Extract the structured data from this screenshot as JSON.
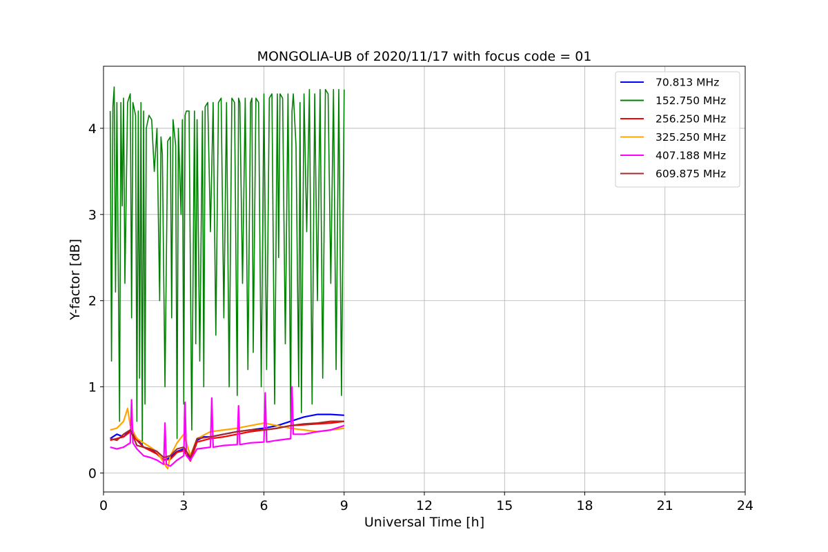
{
  "chart_data": {
    "type": "line",
    "title": "MONGOLIA-UB of 2020/11/17 with focus code = 01",
    "xlabel": "Universal Time [h]",
    "ylabel": "Y-factor [dB]",
    "xlim": [
      0,
      24
    ],
    "ylim": [
      -0.22,
      4.72
    ],
    "xticks": [
      0,
      3,
      6,
      9,
      12,
      15,
      18,
      21,
      24
    ],
    "yticks": [
      0,
      1,
      2,
      3,
      4
    ],
    "grid": true,
    "legend_position": "upper-right",
    "series": [
      {
        "name": " 70.813 MHz",
        "color": "#0000ff",
        "x": [
          0.25,
          0.5,
          0.75,
          1.0,
          1.25,
          1.5,
          1.75,
          2.0,
          2.25,
          2.5,
          2.75,
          3.0,
          3.25,
          3.5,
          3.75,
          4.0,
          4.5,
          5.0,
          5.5,
          6.0,
          6.5,
          7.0,
          7.5,
          8.0,
          8.5,
          9.0
        ],
        "y": [
          0.4,
          0.45,
          0.42,
          0.5,
          0.4,
          0.3,
          0.28,
          0.22,
          0.15,
          0.18,
          0.25,
          0.28,
          0.15,
          0.38,
          0.42,
          0.42,
          0.45,
          0.48,
          0.5,
          0.52,
          0.55,
          0.6,
          0.65,
          0.68,
          0.68,
          0.67
        ]
      },
      {
        "name": "152.750 MHz",
        "color": "#008000",
        "x": [
          0.25,
          0.3,
          0.35,
          0.4,
          0.45,
          0.5,
          0.6,
          0.65,
          0.7,
          0.75,
          0.8,
          0.9,
          1.0,
          1.05,
          1.1,
          1.2,
          1.25,
          1.3,
          1.35,
          1.4,
          1.45,
          1.5,
          1.55,
          1.6,
          1.7,
          1.8,
          1.9,
          2.0,
          2.1,
          2.15,
          2.2,
          2.3,
          2.4,
          2.5,
          2.55,
          2.6,
          2.7,
          2.75,
          2.8,
          2.9,
          2.95,
          3.0,
          3.05,
          3.1,
          3.2,
          3.3,
          3.4,
          3.45,
          3.5,
          3.6,
          3.7,
          3.75,
          3.8,
          3.9,
          4.0,
          4.1,
          4.2,
          4.3,
          4.4,
          4.5,
          4.6,
          4.7,
          4.8,
          4.9,
          5.0,
          5.05,
          5.1,
          5.2,
          5.3,
          5.4,
          5.5,
          5.55,
          5.6,
          5.7,
          5.8,
          5.9,
          6.0,
          6.1,
          6.2,
          6.3,
          6.4,
          6.5,
          6.55,
          6.6,
          6.7,
          6.8,
          6.9,
          7.0,
          7.05,
          7.1,
          7.2,
          7.3,
          7.35,
          7.4,
          7.5,
          7.6,
          7.7,
          7.8,
          7.9,
          8.0,
          8.1,
          8.2,
          8.3,
          8.4,
          8.5,
          8.6,
          8.7,
          8.8,
          8.9,
          9.0
        ],
        "y": [
          4.2,
          1.3,
          4.25,
          4.48,
          2.1,
          4.3,
          0.6,
          4.3,
          3.1,
          4.35,
          2.2,
          4.3,
          4.4,
          1.8,
          4.3,
          4.15,
          0.6,
          4.2,
          1.1,
          4.3,
          0.3,
          4.2,
          0.8,
          4.0,
          4.15,
          4.1,
          3.5,
          4.0,
          2.0,
          3.9,
          3.7,
          1.0,
          3.85,
          3.9,
          1.8,
          4.1,
          3.8,
          0.4,
          4.0,
          3.0,
          4.1,
          0.8,
          4.15,
          4.2,
          4.2,
          0.5,
          4.2,
          1.5,
          4.1,
          1.3,
          4.2,
          1.0,
          4.25,
          4.3,
          2.8,
          4.3,
          1.6,
          4.3,
          4.35,
          1.8,
          4.3,
          1.0,
          4.35,
          4.3,
          0.9,
          4.35,
          4.3,
          2.2,
          4.35,
          1.2,
          4.3,
          4.35,
          1.4,
          4.35,
          4.3,
          1.0,
          4.4,
          1.2,
          4.35,
          4.4,
          0.8,
          4.4,
          2.5,
          4.4,
          4.35,
          1.5,
          4.4,
          0.6,
          4.2,
          4.4,
          3.8,
          1.0,
          4.3,
          0.7,
          4.4,
          2.8,
          4.45,
          0.8,
          4.4,
          2.0,
          4.45,
          1.1,
          4.45,
          4.4,
          2.2,
          4.45,
          1.2,
          4.45,
          0.9,
          4.45
        ]
      },
      {
        "name": "256.250 MHz",
        "color": "#ff0000",
        "x": [
          0.25,
          0.5,
          0.75,
          1.0,
          1.25,
          1.5,
          1.75,
          2.0,
          2.25,
          2.5,
          2.75,
          3.0,
          3.25,
          3.5,
          4.0,
          4.5,
          5.0,
          5.5,
          6.0,
          6.5,
          7.0,
          7.5,
          8.0,
          8.5,
          9.0
        ],
        "y": [
          0.38,
          0.4,
          0.42,
          0.48,
          0.38,
          0.3,
          0.26,
          0.22,
          0.15,
          0.16,
          0.24,
          0.26,
          0.14,
          0.36,
          0.4,
          0.42,
          0.45,
          0.48,
          0.5,
          0.52,
          0.55,
          0.56,
          0.57,
          0.58,
          0.6
        ]
      },
      {
        "name": "325.250 MHz",
        "color": "#ffa500",
        "x": [
          0.25,
          0.5,
          0.75,
          0.9,
          1.0,
          1.25,
          1.5,
          1.75,
          2.0,
          2.25,
          2.4,
          2.5,
          2.75,
          3.0,
          3.25,
          3.5,
          4.0,
          4.5,
          5.0,
          5.5,
          6.0,
          6.5,
          7.0,
          7.5,
          8.0,
          8.5,
          9.0
        ],
        "y": [
          0.5,
          0.52,
          0.6,
          0.75,
          0.55,
          0.4,
          0.35,
          0.3,
          0.25,
          0.12,
          0.05,
          0.2,
          0.35,
          0.45,
          0.2,
          0.4,
          0.48,
          0.5,
          0.52,
          0.55,
          0.58,
          0.55,
          0.52,
          0.5,
          0.48,
          0.5,
          0.52
        ]
      },
      {
        "name": "407.188 MHz",
        "color": "#ff00ff",
        "x": [
          0.25,
          0.5,
          0.75,
          1.0,
          1.05,
          1.1,
          1.25,
          1.5,
          1.75,
          2.0,
          2.25,
          2.3,
          2.35,
          2.5,
          2.75,
          3.0,
          3.05,
          3.1,
          3.25,
          3.5,
          4.0,
          4.05,
          4.1,
          4.5,
          5.0,
          5.05,
          5.1,
          5.5,
          6.0,
          6.05,
          6.1,
          6.5,
          7.0,
          7.05,
          7.1,
          7.5,
          8.0,
          8.5,
          9.0
        ],
        "y": [
          0.3,
          0.28,
          0.3,
          0.35,
          0.85,
          0.35,
          0.28,
          0.2,
          0.18,
          0.15,
          0.1,
          0.58,
          0.1,
          0.08,
          0.15,
          0.2,
          0.82,
          0.2,
          0.15,
          0.28,
          0.3,
          0.87,
          0.3,
          0.32,
          0.33,
          0.78,
          0.33,
          0.35,
          0.36,
          0.93,
          0.36,
          0.38,
          0.4,
          1.0,
          0.45,
          0.45,
          0.48,
          0.5,
          0.55
        ]
      },
      {
        "name": "609.875 MHz",
        "color": "#a52a2a",
        "x": [
          0.25,
          0.5,
          0.75,
          1.0,
          1.25,
          1.5,
          1.75,
          2.0,
          2.25,
          2.5,
          2.75,
          3.0,
          3.25,
          3.5,
          4.0,
          4.5,
          5.0,
          5.5,
          6.0,
          6.5,
          7.0,
          7.5,
          8.0,
          8.5,
          9.0
        ],
        "y": [
          0.4,
          0.38,
          0.45,
          0.5,
          0.32,
          0.3,
          0.28,
          0.25,
          0.18,
          0.2,
          0.28,
          0.3,
          0.18,
          0.4,
          0.42,
          0.45,
          0.48,
          0.5,
          0.5,
          0.52,
          0.55,
          0.57,
          0.58,
          0.6,
          0.6
        ]
      }
    ]
  }
}
